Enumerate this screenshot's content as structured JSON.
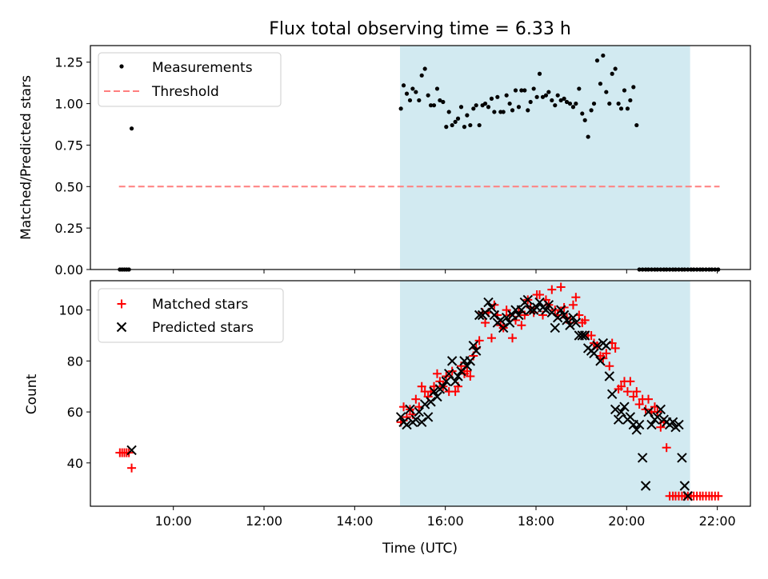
{
  "chart_data": [
    {
      "type": "scatter",
      "title": "Flux total observing time = 6.33 h",
      "ylabel": "Matched/Predicted stars",
      "xlabel": "",
      "xlim": [
        8.17,
        22.73
      ],
      "ylim": [
        0,
        1.35
      ],
      "yticks": [
        0.0,
        0.25,
        0.5,
        0.75,
        1.0,
        1.25
      ],
      "ytick_labels": [
        "0.00",
        "0.25",
        "0.50",
        "0.75",
        "1.00",
        "1.25"
      ],
      "shaded_span": [
        15.0,
        21.4
      ],
      "shade_color": "#add8e6",
      "threshold": {
        "value": 0.5,
        "x_start": 8.8,
        "x_end": 22.05,
        "color": "#ff7f7f"
      },
      "legend": {
        "location": "upper-left",
        "entries": [
          "Measurements",
          "Threshold"
        ]
      },
      "series": [
        {
          "name": "Measurements",
          "color": "#000000",
          "x": [
            8.82,
            8.87,
            8.92,
            8.97,
            9.02,
            9.08,
            15.02,
            15.08,
            15.15,
            15.22,
            15.28,
            15.35,
            15.42,
            15.48,
            15.55,
            15.62,
            15.68,
            15.75,
            15.82,
            15.88,
            15.95,
            16.02,
            16.08,
            16.15,
            16.22,
            16.28,
            16.35,
            16.42,
            16.48,
            16.55,
            16.62,
            16.68,
            16.75,
            16.82,
            16.88,
            16.95,
            17.02,
            17.08,
            17.15,
            17.22,
            17.28,
            17.35,
            17.42,
            17.48,
            17.55,
            17.62,
            17.68,
            17.75,
            17.82,
            17.88,
            17.95,
            18.02,
            18.08,
            18.15,
            18.22,
            18.28,
            18.35,
            18.42,
            18.48,
            18.55,
            18.62,
            18.68,
            18.75,
            18.82,
            18.88,
            18.95,
            19.02,
            19.08,
            19.15,
            19.22,
            19.28,
            19.35,
            19.42,
            19.48,
            19.55,
            19.62,
            19.68,
            19.75,
            19.82,
            19.88,
            19.95,
            20.02,
            20.08,
            20.15,
            20.22,
            20.28,
            20.35,
            20.42,
            20.48,
            20.55,
            20.62,
            20.68,
            20.75,
            20.82,
            20.88,
            20.95,
            21.02,
            21.08,
            21.15,
            21.22,
            21.28,
            21.35,
            21.42,
            21.48,
            21.55,
            21.62,
            21.68,
            21.75,
            21.82,
            21.88,
            21.95,
            22.02
          ],
          "y": [
            0.0,
            0.0,
            0.0,
            0.0,
            0.0,
            0.85,
            0.97,
            1.11,
            1.06,
            1.02,
            1.09,
            1.07,
            1.02,
            1.17,
            1.21,
            1.05,
            0.99,
            0.99,
            1.09,
            1.02,
            1.01,
            0.86,
            0.95,
            0.87,
            0.89,
            0.91,
            0.98,
            0.86,
            0.93,
            0.87,
            0.97,
            0.99,
            0.87,
            0.99,
            1.0,
            0.98,
            1.03,
            0.95,
            1.04,
            0.95,
            0.95,
            1.05,
            1.0,
            0.96,
            1.08,
            0.98,
            1.08,
            1.08,
            0.96,
            1.01,
            1.09,
            1.04,
            1.18,
            1.04,
            1.05,
            1.07,
            1.02,
            0.99,
            1.05,
            1.02,
            1.03,
            1.01,
            1.0,
            0.98,
            1.0,
            1.09,
            0.94,
            0.9,
            0.8,
            0.96,
            1.0,
            1.26,
            1.12,
            1.29,
            1.07,
            1.0,
            1.18,
            1.21,
            1.0,
            0.97,
            1.08,
            0.97,
            1.02,
            1.1,
            0.87,
            0.0,
            0.0,
            0.0,
            0.0,
            0.0,
            0.0,
            0.0,
            0.0,
            0.0,
            0.0,
            0.0,
            0.0,
            0.0,
            0.0,
            0.0,
            0.0,
            0.0,
            0.0,
            0.0,
            0.0,
            0.0,
            0.0,
            0.0,
            0.0,
            0.0,
            0.0,
            0.0
          ]
        }
      ]
    },
    {
      "type": "scatter",
      "title": "",
      "ylabel": "Count",
      "xlabel": "Time (UTC)",
      "xlim": [
        8.17,
        22.73
      ],
      "ylim": [
        23,
        111.5
      ],
      "xticks": [
        10,
        12,
        14,
        16,
        18,
        20,
        22
      ],
      "xtick_labels": [
        "10:00",
        "12:00",
        "14:00",
        "16:00",
        "18:00",
        "20:00",
        "22:00"
      ],
      "yticks": [
        40,
        60,
        80,
        100
      ],
      "ytick_labels": [
        "40",
        "60",
        "80",
        "100"
      ],
      "shaded_span": [
        15.0,
        21.4
      ],
      "shade_color": "#add8e6",
      "legend": {
        "location": "upper-left",
        "entries": [
          "Matched stars",
          "Predicted stars"
        ]
      },
      "series": [
        {
          "name": "Matched stars",
          "marker": "plus",
          "color": "#ff0000",
          "x": [
            8.82,
            8.87,
            8.92,
            8.97,
            9.02,
            9.08,
            15.02,
            15.08,
            15.15,
            15.22,
            15.28,
            15.35,
            15.42,
            15.48,
            15.55,
            15.62,
            15.68,
            15.75,
            15.82,
            15.88,
            15.95,
            16.02,
            16.08,
            16.15,
            16.22,
            16.28,
            16.35,
            16.42,
            16.48,
            16.55,
            16.62,
            16.68,
            16.75,
            16.82,
            16.88,
            16.95,
            17.02,
            17.08,
            17.15,
            17.22,
            17.28,
            17.35,
            17.42,
            17.48,
            17.55,
            17.62,
            17.68,
            17.75,
            17.82,
            17.88,
            17.95,
            18.02,
            18.08,
            18.15,
            18.22,
            18.28,
            18.35,
            18.42,
            18.48,
            18.55,
            18.62,
            18.68,
            18.75,
            18.82,
            18.88,
            18.95,
            19.02,
            19.08,
            19.15,
            19.22,
            19.28,
            19.35,
            19.42,
            19.48,
            19.55,
            19.62,
            19.68,
            19.75,
            19.82,
            19.88,
            19.95,
            20.02,
            20.08,
            20.15,
            20.22,
            20.28,
            20.35,
            20.42,
            20.48,
            20.55,
            20.62,
            20.68,
            20.75,
            20.82,
            20.88,
            20.95,
            21.02,
            21.08,
            21.15,
            21.22,
            21.28,
            21.35,
            21.42,
            21.48,
            21.55,
            21.62,
            21.68,
            21.75,
            21.82,
            21.88,
            21.95,
            22.02
          ],
          "y": [
            44,
            44,
            44,
            44,
            44,
            38,
            56,
            62,
            58,
            61,
            59,
            65,
            62,
            70,
            68,
            66,
            68,
            70,
            75,
            72,
            70,
            74,
            68,
            76,
            68,
            70,
            78,
            75,
            76,
            74,
            82,
            85,
            88,
            99,
            95,
            99,
            89,
            102,
            98,
            94,
            93,
            100,
            98,
            89,
            96,
            99,
            94,
            98,
            104,
            101,
            99,
            106,
            106,
            98,
            104,
            102,
            108,
            100,
            98,
            109,
            101,
            97,
            95,
            102,
            105,
            98,
            95,
            96,
            90,
            90,
            87,
            86,
            82,
            81,
            83,
            78,
            87,
            85,
            69,
            70,
            72,
            68,
            72,
            66,
            68,
            63,
            65,
            61,
            65,
            60,
            62,
            60,
            54,
            56,
            46,
            27,
            27,
            27,
            27,
            27,
            27,
            27,
            27,
            27,
            27,
            27,
            27,
            27,
            27,
            27,
            27,
            27
          ]
        },
        {
          "name": "Predicted stars",
          "marker": "x",
          "color": "#000000",
          "x": [
            9.08,
            15.02,
            15.08,
            15.15,
            15.22,
            15.28,
            15.35,
            15.42,
            15.48,
            15.55,
            15.62,
            15.68,
            15.75,
            15.82,
            15.88,
            15.95,
            16.02,
            16.08,
            16.15,
            16.22,
            16.28,
            16.35,
            16.42,
            16.48,
            16.55,
            16.62,
            16.68,
            16.75,
            16.82,
            16.88,
            16.95,
            17.02,
            17.08,
            17.15,
            17.22,
            17.28,
            17.35,
            17.42,
            17.48,
            17.55,
            17.62,
            17.68,
            17.75,
            17.82,
            17.88,
            17.95,
            18.02,
            18.08,
            18.15,
            18.22,
            18.28,
            18.35,
            18.42,
            18.48,
            18.55,
            18.62,
            18.68,
            18.75,
            18.82,
            18.88,
            18.95,
            19.02,
            19.08,
            19.15,
            19.22,
            19.28,
            19.35,
            19.42,
            19.48,
            19.55,
            19.62,
            19.68,
            19.75,
            19.82,
            19.88,
            19.95,
            20.02,
            20.08,
            20.15,
            20.22,
            20.28,
            20.35,
            20.42,
            20.48,
            20.55,
            20.62,
            20.68,
            20.75,
            20.82,
            20.88,
            20.95,
            21.02,
            21.08,
            21.15,
            21.22,
            21.28,
            21.35
          ],
          "y": [
            45,
            58,
            56,
            55,
            61,
            56,
            57,
            60,
            56,
            63,
            58,
            64,
            68,
            66,
            69,
            70,
            72,
            75,
            80,
            72,
            74,
            76,
            80,
            78,
            80,
            86,
            84,
            98,
            98,
            99,
            103,
            101,
            98,
            95,
            96,
            93,
            97,
            95,
            98,
            100,
            98,
            100,
            103,
            104,
            100,
            100,
            101,
            103,
            101,
            100,
            102,
            99,
            93,
            97,
            100,
            98,
            96,
            94,
            97,
            95,
            90,
            90,
            90,
            85,
            84,
            83,
            86,
            80,
            87,
            86,
            74,
            67,
            61,
            57,
            60,
            62,
            57,
            58,
            55,
            53,
            55,
            42,
            31,
            60,
            55,
            57,
            58,
            61,
            57,
            56,
            55,
            56,
            54,
            55,
            42,
            31,
            27
          ]
        }
      ]
    }
  ]
}
